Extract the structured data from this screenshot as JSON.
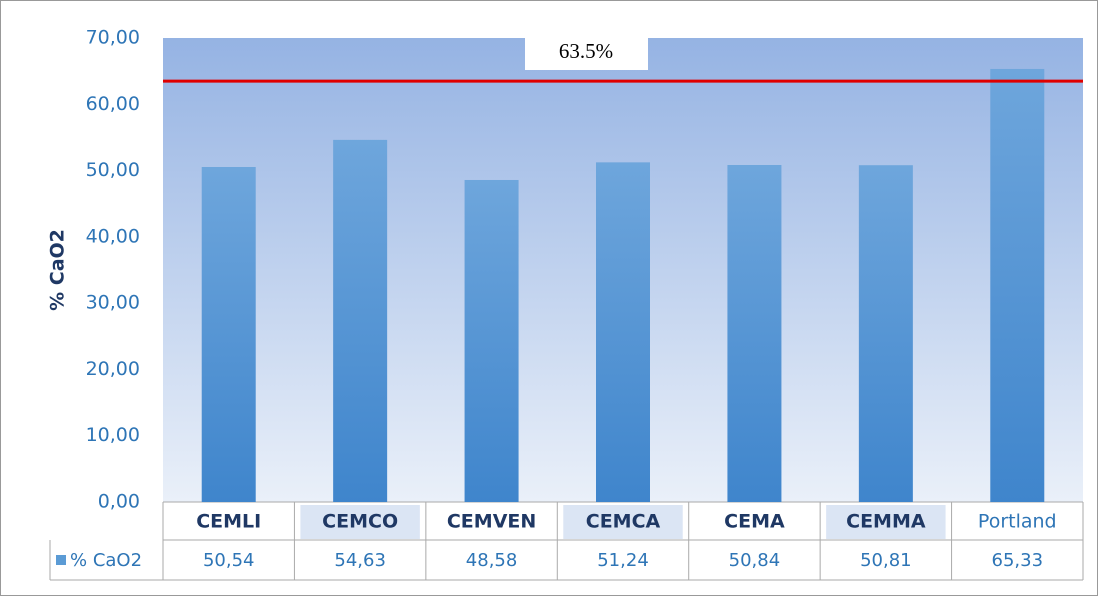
{
  "chart_data": {
    "type": "bar",
    "y_axis_title": "% CaO2",
    "categories": [
      "CEMLI",
      "CEMCO",
      "CEMVEN",
      "CEMCA",
      "CEMA",
      "CEMMA",
      "Portland"
    ],
    "series": [
      {
        "name": "% CaO2",
        "color": "#5b9bd5",
        "values": [
          50.54,
          54.63,
          48.58,
          51.24,
          50.84,
          50.81,
          65.33
        ],
        "value_labels": [
          "50,54",
          "54,63",
          "48,58",
          "51,24",
          "50,84",
          "50,81",
          "65,33"
        ]
      }
    ],
    "ylim": [
      0,
      70
    ],
    "yticks": [
      {
        "value": 0,
        "label": "0,00"
      },
      {
        "value": 10,
        "label": "10,00"
      },
      {
        "value": 20,
        "label": "20,00"
      },
      {
        "value": 30,
        "label": "30,00"
      },
      {
        "value": 40,
        "label": "40,00"
      },
      {
        "value": 50,
        "label": "50,00"
      },
      {
        "value": 60,
        "label": "60,00"
      },
      {
        "value": 70,
        "label": "70,00"
      }
    ],
    "reference_line": {
      "value": 63.5,
      "label": "63.5%",
      "color": "#e00000"
    },
    "grid": false
  }
}
